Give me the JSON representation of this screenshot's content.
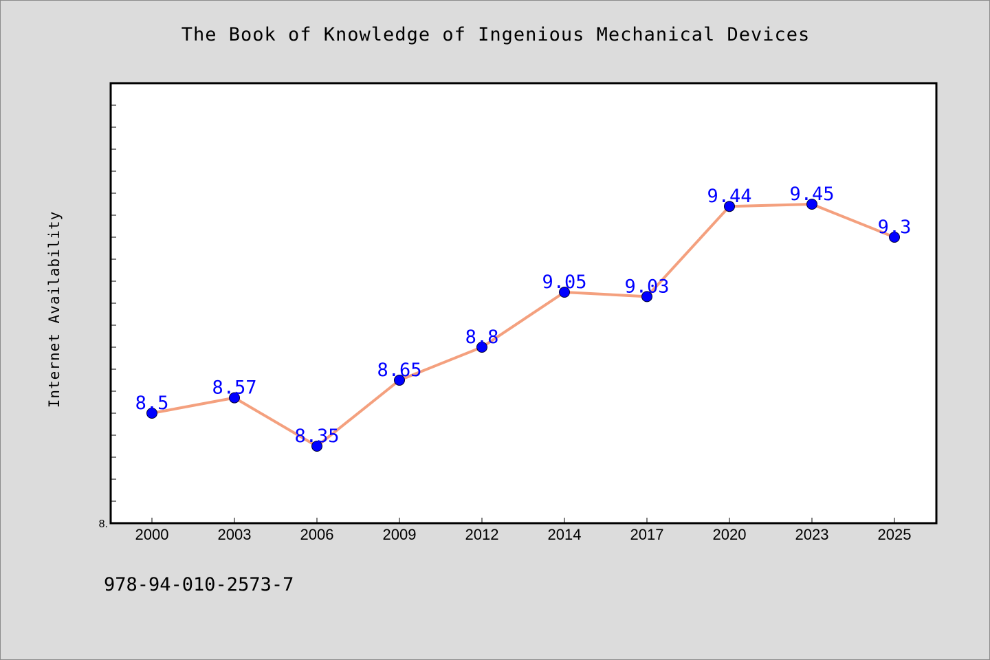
{
  "page": {
    "background": "#dcdcdc",
    "footer_code": "978-94-010-2573-7"
  },
  "chart_data": {
    "type": "line",
    "title": "The Book of Knowledge of Ingenious Mechanical Devices",
    "xlabel": "",
    "ylabel": "Internet Availability",
    "categories": [
      "2000",
      "2003",
      "2006",
      "2009",
      "2012",
      "2014",
      "2017",
      "2020",
      "2023",
      "2025"
    ],
    "series": [
      {
        "values": [
          8.5,
          8.57,
          8.35,
          8.65,
          8.8,
          9.05,
          9.03,
          9.44,
          9.45,
          9.3
        ],
        "data_labels": [
          "8.5",
          "8.57",
          "8.35",
          "8.65",
          "8.8",
          "9.05",
          "9.03",
          "9.44",
          "9.45",
          "9.3"
        ],
        "line_color": "#f4a07e",
        "marker_color": "#0000ff"
      }
    ],
    "ylim": [
      8.0,
      10.0
    ],
    "y_tick_label": "8.",
    "grid": false,
    "legend": "none",
    "plot_background": "#ffffff"
  }
}
